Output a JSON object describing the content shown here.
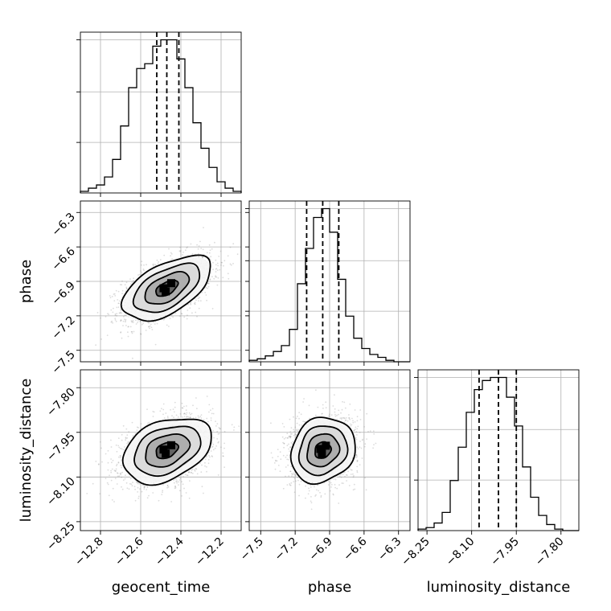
{
  "chart_data": {
    "type": "corner",
    "parameters": [
      {
        "name": "geocent_time",
        "label": "geocent_time",
        "range": [
          -12.9,
          -12.1
        ],
        "ticks": [
          -12.8,
          -12.6,
          -12.4,
          -12.2
        ],
        "tick_labels": [
          "−12.8",
          "−12.6",
          "−12.4",
          "−12.2"
        ],
        "quantiles": [
          -12.52,
          -12.47,
          -12.41
        ],
        "histogram": {
          "edges_start": -12.9,
          "bin_width": 0.04,
          "counts": [
            1,
            3,
            5,
            10,
            21,
            42,
            66,
            78,
            81,
            92,
            96,
            96,
            84,
            66,
            44,
            28,
            16,
            7,
            3,
            1
          ]
        }
      },
      {
        "name": "phase",
        "label": "phase",
        "range": [
          -7.6,
          -6.2
        ],
        "ticks": [
          -7.5,
          -7.2,
          -6.9,
          -6.6,
          -6.3
        ],
        "tick_labels": [
          "−7.5",
          "−7.2",
          "−6.9",
          "−6.6",
          "−6.3"
        ],
        "quantiles": [
          -7.1,
          -6.96,
          -6.82
        ],
        "histogram": {
          "edges_start": -7.6,
          "bin_width": 0.07,
          "counts": [
            1,
            2,
            4,
            7,
            11,
            22,
            53,
            77,
            98,
            104,
            88,
            56,
            31,
            16,
            9,
            5,
            3,
            1,
            0,
            0
          ]
        }
      },
      {
        "name": "luminosity_distance",
        "label": "luminosity_distance",
        "range": [
          -8.28,
          -7.74
        ],
        "ticks": [
          -8.25,
          -8.1,
          -7.95,
          -7.8
        ],
        "tick_labels": [
          "−8.25",
          "−8.10",
          "−7.95",
          "−7.80"
        ],
        "quantiles": [
          -8.075,
          -8.01,
          -7.95
        ],
        "histogram": {
          "edges_start": -8.28,
          "bin_width": 0.027,
          "counts": [
            1,
            2,
            5,
            12,
            33,
            55,
            78,
            93,
            99,
            101,
            101,
            88,
            69,
            42,
            22,
            10,
            4,
            1,
            0,
            0
          ]
        }
      }
    ],
    "pairs": [
      {
        "x": "geocent_time",
        "y": "phase",
        "mean": [
          -12.47,
          -6.96
        ],
        "sd": [
          0.11,
          0.14
        ],
        "corr": 0.55,
        "contour_levels": [
          0.5,
          1.0,
          1.5,
          2.0
        ]
      },
      {
        "x": "geocent_time",
        "y": "luminosity_distance",
        "mean": [
          -12.47,
          -8.01
        ],
        "sd": [
          0.11,
          0.055
        ],
        "corr": 0.35,
        "contour_levels": [
          0.5,
          1.0,
          1.5,
          2.0
        ]
      },
      {
        "x": "phase",
        "y": "luminosity_distance",
        "mean": [
          -6.96,
          -8.01
        ],
        "sd": [
          0.14,
          0.055
        ],
        "corr": 0.15,
        "contour_levels": [
          0.5,
          1.0,
          1.5,
          2.0
        ]
      }
    ],
    "grid": true,
    "colors": {
      "points": "#808080",
      "lines": "#000000",
      "density": "#000000"
    }
  }
}
